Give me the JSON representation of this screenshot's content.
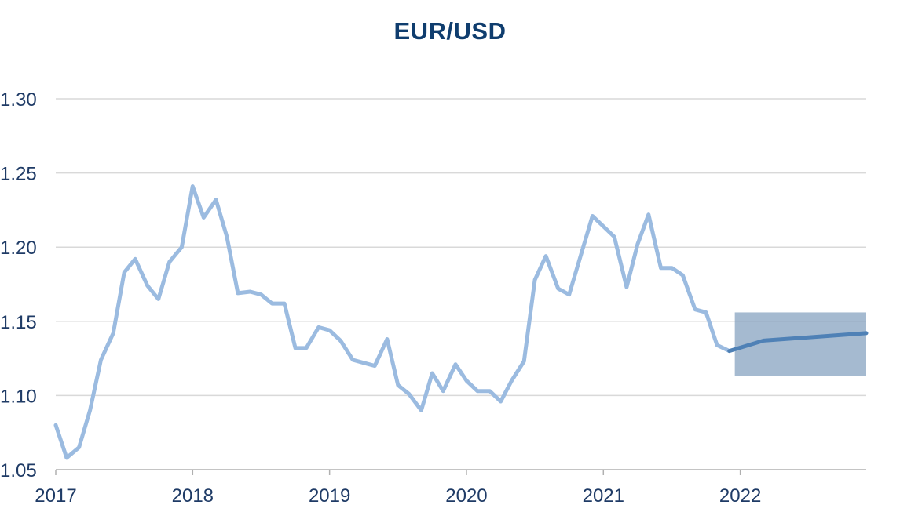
{
  "colors": {
    "title": "#0f3d6e",
    "axis_text": "#1f3b66",
    "grid": "#d9d9d9",
    "axis": "#b0b0b0",
    "history_line": "#9bbbe0",
    "forecast_line": "#4f81b6",
    "forecast_band": "#7f9dbc"
  },
  "chart_data": {
    "type": "line",
    "title": "EUR/USD",
    "xlabel": "",
    "ylabel": "",
    "xlim": [
      2017.0,
      2022.92
    ],
    "ylim": [
      1.05,
      1.3
    ],
    "grid": true,
    "x_ticks": [
      2017,
      2018,
      2019,
      2020,
      2021,
      2022
    ],
    "x_tick_labels": [
      "2017",
      "2018",
      "2019",
      "2020",
      "2021",
      "2022"
    ],
    "y_ticks": [
      1.05,
      1.1,
      1.15,
      1.2,
      1.25,
      1.3
    ],
    "y_tick_labels": [
      "1.05",
      "1.10",
      "1.15",
      "1.20",
      "1.25",
      "1.30"
    ],
    "series": [
      {
        "role": "history",
        "x": [
          2017.0,
          2017.08,
          2017.17,
          2017.25,
          2017.33,
          2017.42,
          2017.5,
          2017.58,
          2017.67,
          2017.75,
          2017.83,
          2017.92,
          2018.0,
          2018.08,
          2018.17,
          2018.25,
          2018.33,
          2018.42,
          2018.5,
          2018.58,
          2018.67,
          2018.75,
          2018.83,
          2018.92,
          2019.0,
          2019.08,
          2019.17,
          2019.25,
          2019.33,
          2019.42,
          2019.5,
          2019.58,
          2019.67,
          2019.75,
          2019.83,
          2019.92,
          2020.0,
          2020.08,
          2020.17,
          2020.25,
          2020.33,
          2020.42,
          2020.5,
          2020.58,
          2020.67,
          2020.75,
          2020.83,
          2020.92,
          2021.0,
          2021.08,
          2021.17,
          2021.25,
          2021.33,
          2021.42,
          2021.5,
          2021.58,
          2021.67,
          2021.75,
          2021.83,
          2021.92
        ],
        "y": [
          1.08,
          1.058,
          1.065,
          1.09,
          1.124,
          1.142,
          1.183,
          1.192,
          1.174,
          1.165,
          1.19,
          1.2,
          1.241,
          1.22,
          1.232,
          1.207,
          1.169,
          1.17,
          1.168,
          1.162,
          1.162,
          1.132,
          1.132,
          1.146,
          1.144,
          1.137,
          1.124,
          1.122,
          1.12,
          1.138,
          1.107,
          1.101,
          1.09,
          1.115,
          1.103,
          1.121,
          1.11,
          1.103,
          1.103,
          1.096,
          1.11,
          1.123,
          1.178,
          1.194,
          1.172,
          1.168,
          1.193,
          1.221,
          1.214,
          1.207,
          1.173,
          1.202,
          1.222,
          1.186,
          1.186,
          1.181,
          1.158,
          1.156,
          1.134,
          1.13
        ]
      },
      {
        "role": "forecast",
        "x": [
          2021.92,
          2022.17,
          2022.92
        ],
        "y": [
          1.13,
          1.137,
          1.142
        ]
      }
    ],
    "band": {
      "x_start": 2021.96,
      "x_end": 2022.92,
      "y_low": 1.113,
      "y_high": 1.156
    }
  }
}
